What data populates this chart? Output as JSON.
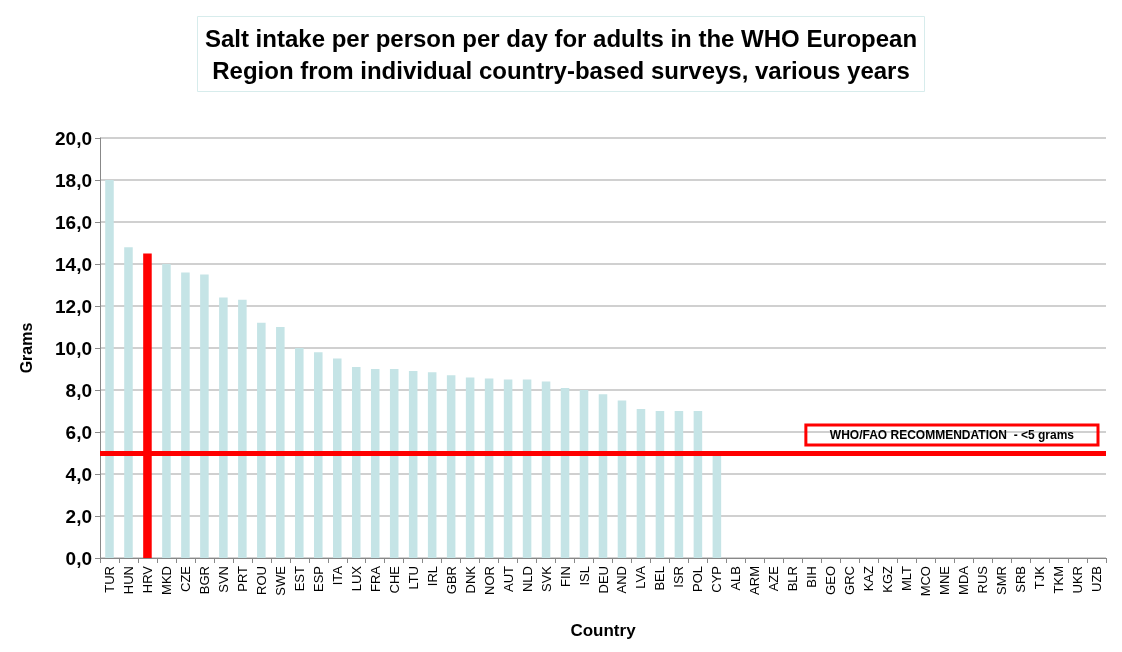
{
  "chart_data": {
    "type": "bar",
    "title": "Salt intake per person per day for adults in the WHO European\nRegion from individual country-based surveys, various years",
    "xlabel": "Country",
    "ylabel": "Grams",
    "categories": [
      "TUR",
      "HUN",
      "HRV",
      "MKD",
      "CZE",
      "BGR",
      "SVN",
      "PRT",
      "ROU",
      "SWE",
      "EST",
      "ESP",
      "ITA",
      "LUX",
      "FRA",
      "CHE",
      "LTU",
      "IRL",
      "GBR",
      "DNK",
      "NOR",
      "AUT",
      "NLD",
      "SVK",
      "FIN",
      "ISL",
      "DEU",
      "AND",
      "LVA",
      "BEL",
      "ISR",
      "POL",
      "CYP",
      "ALB",
      "ARM",
      "AZE",
      "BLR",
      "BIH",
      "GEO",
      "GRC",
      "KAZ",
      "KGZ",
      "MLT",
      "MCO",
      "MNE",
      "MDA",
      "RUS",
      "SMR",
      "SRB",
      "TJK",
      "TKM",
      "UKR",
      "UZB"
    ],
    "values": [
      18.0,
      14.8,
      14.5,
      14.0,
      13.6,
      13.5,
      12.4,
      12.3,
      11.2,
      11.0,
      10.0,
      9.8,
      9.5,
      9.1,
      9.0,
      9.0,
      8.9,
      8.85,
      8.7,
      8.6,
      8.55,
      8.5,
      8.5,
      8.4,
      8.1,
      8.0,
      7.8,
      7.5,
      7.1,
      7.0,
      7.0,
      7.0,
      4.9,
      null,
      null,
      null,
      null,
      null,
      null,
      null,
      null,
      null,
      null,
      null,
      null,
      null,
      null,
      null,
      null,
      null,
      null,
      null,
      null
    ],
    "colors": [
      "#c5e4e6",
      "#c5e4e6",
      "#ff0000",
      "#c5e4e6",
      "#c5e4e6",
      "#c5e4e6",
      "#c5e4e6",
      "#c5e4e6",
      "#c5e4e6",
      "#c5e4e6",
      "#c5e4e6",
      "#c5e4e6",
      "#c5e4e6",
      "#c5e4e6",
      "#c5e4e6",
      "#c5e4e6",
      "#c5e4e6",
      "#c5e4e6",
      "#c5e4e6",
      "#c5e4e6",
      "#c5e4e6",
      "#c5e4e6",
      "#c5e4e6",
      "#c5e4e6",
      "#c5e4e6",
      "#c5e4e6",
      "#c5e4e6",
      "#c5e4e6",
      "#c5e4e6",
      "#c5e4e6",
      "#c5e4e6",
      "#c5e4e6",
      "#c5e4e6",
      "#c5e4e6",
      "#c5e4e6",
      "#c5e4e6",
      "#c5e4e6",
      "#c5e4e6",
      "#c5e4e6",
      "#c5e4e6",
      "#c5e4e6",
      "#c5e4e6",
      "#c5e4e6",
      "#c5e4e6",
      "#c5e4e6",
      "#c5e4e6",
      "#c5e4e6",
      "#c5e4e6",
      "#c5e4e6",
      "#c5e4e6",
      "#c5e4e6",
      "#c5e4e6",
      "#c5e4e6"
    ],
    "ylim": [
      0,
      20
    ],
    "yticks": [
      {
        "value": 0,
        "label": "0,0"
      },
      {
        "value": 2,
        "label": "2,0"
      },
      {
        "value": 4,
        "label": "4,0"
      },
      {
        "value": 6,
        "label": "6,0"
      },
      {
        "value": 8,
        "label": "8,0"
      },
      {
        "value": 10,
        "label": "10,0"
      },
      {
        "value": 12,
        "label": "12,0"
      },
      {
        "value": 14,
        "label": "14,0"
      },
      {
        "value": 16,
        "label": "16,0"
      },
      {
        "value": 18,
        "label": "18,0"
      },
      {
        "value": 20,
        "label": "20,0"
      }
    ],
    "ref_lines": [
      {
        "axis": "y",
        "value": 5,
        "label": "WHO/FAO RECOMMENDATION  - <5 grams",
        "color": "#ff0000"
      }
    ],
    "grid": "y"
  }
}
